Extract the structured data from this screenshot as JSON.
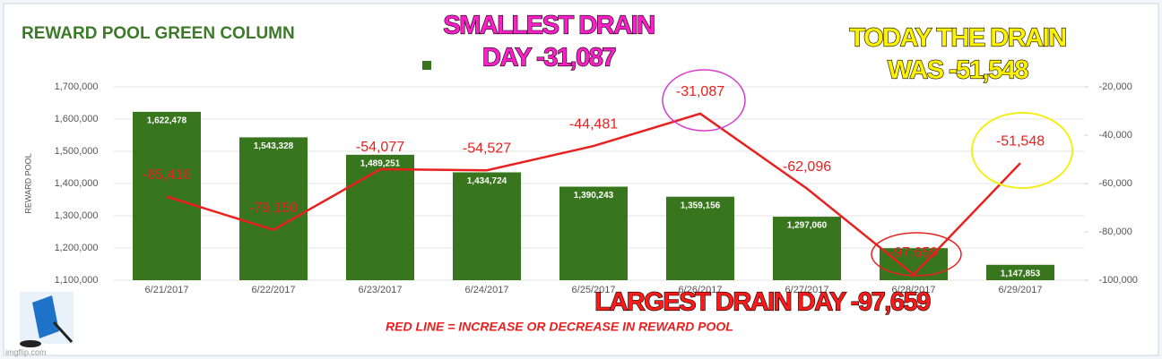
{
  "chart_data": {
    "type": "bar_line",
    "title": "REWARD POOL GREEN COLUMN",
    "ylabel": "REWARD POOL",
    "categories": [
      "6/21/2017",
      "6/22/2017",
      "6/23/2017",
      "6/24/2017",
      "6/25/2017",
      "6/26/2017",
      "6/27/2017",
      "6/28/2017",
      "6/29/2017"
    ],
    "series": [
      {
        "name": "REWARD POOL",
        "color": "#38761d",
        "values": [
          1622478,
          1543328,
          1489251,
          1434724,
          1390243,
          1359156,
          1297060,
          1199401,
          1147853
        ],
        "value_labels": [
          "1,622,478",
          "1,543,328",
          "1,489,251",
          "1,434,724",
          "1,390,243",
          "1,359,156",
          "1,297,060",
          null,
          "1,147,853"
        ]
      },
      {
        "name": "RED LINE",
        "color": "#e8201f",
        "axis": "y2",
        "values": [
          -65416,
          -79150,
          -54077,
          -54527,
          -44481,
          -31087,
          -62096,
          -97659,
          -51548
        ],
        "value_labels": [
          "-65,416",
          "-79,150",
          "-54,077",
          "-54,527",
          "-44,481",
          "-31,087",
          "-62,096",
          "-97,659",
          "-51,548"
        ]
      }
    ],
    "ylim": [
      1100000,
      1700000
    ],
    "yticks": [
      {
        "value": 1100000,
        "label": "1,100,000"
      },
      {
        "value": 1200000,
        "label": "1,200,000"
      },
      {
        "value": 1300000,
        "label": "1,300,000"
      },
      {
        "value": 1400000,
        "label": "1,400,000"
      },
      {
        "value": 1500000,
        "label": "1,500,000"
      },
      {
        "value": 1600000,
        "label": "1,600,000"
      },
      {
        "value": 1700000,
        "label": "1,700,000"
      }
    ],
    "y2lim": [
      -100000,
      -20000
    ],
    "y2ticks": [
      {
        "value": -100000,
        "label": "-100,000"
      },
      {
        "value": -80000,
        "label": "-80,000"
      },
      {
        "value": -60000,
        "label": "-60,000"
      },
      {
        "value": -40000,
        "label": "-40,000"
      },
      {
        "value": -20000,
        "label": "-20,000"
      }
    ],
    "grid": true,
    "annotations": [
      {
        "lines": [
          "SMALLEST DRAIN",
          "DAY  -31,087"
        ],
        "color": "#ff1fc8"
      },
      {
        "lines": [
          "TODAY THE DRAIN",
          "WAS  -51,548"
        ],
        "color": "#fff200"
      },
      {
        "lines": [
          "LARGEST DRAIN DAY  -97,659"
        ],
        "color": "#ff1a1a"
      }
    ],
    "footnote": "RED LINE = INCREASE OR DECREASE IN REWARD POOL",
    "watermark": "imgflip.com"
  }
}
